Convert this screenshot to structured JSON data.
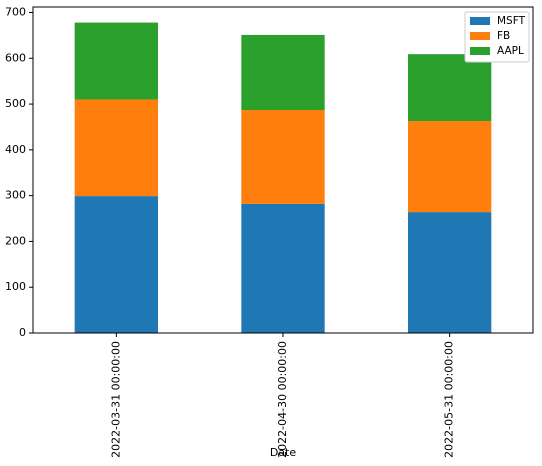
{
  "chart_data": {
    "type": "stacked-bar",
    "x_label": "Date",
    "categories": [
      "2022-03-31 00:00:00",
      "2022-04-30 00:00:00",
      "2022-05-31 00:00:00"
    ],
    "series": [
      {
        "name": "MSFT",
        "color": "#1f77b4",
        "values": [
          299,
          282,
          264
        ]
      },
      {
        "name": "FB",
        "color": "#ff7f0e",
        "values": [
          211,
          205,
          199
        ]
      },
      {
        "name": "AAPL",
        "color": "#2ca02c",
        "values": [
          168,
          164,
          146
        ]
      }
    ],
    "ylim": [
      0,
      712
    ],
    "yticks": [
      0,
      100,
      200,
      300,
      400,
      500,
      600,
      700
    ],
    "legend": "upper right",
    "grid": false
  }
}
